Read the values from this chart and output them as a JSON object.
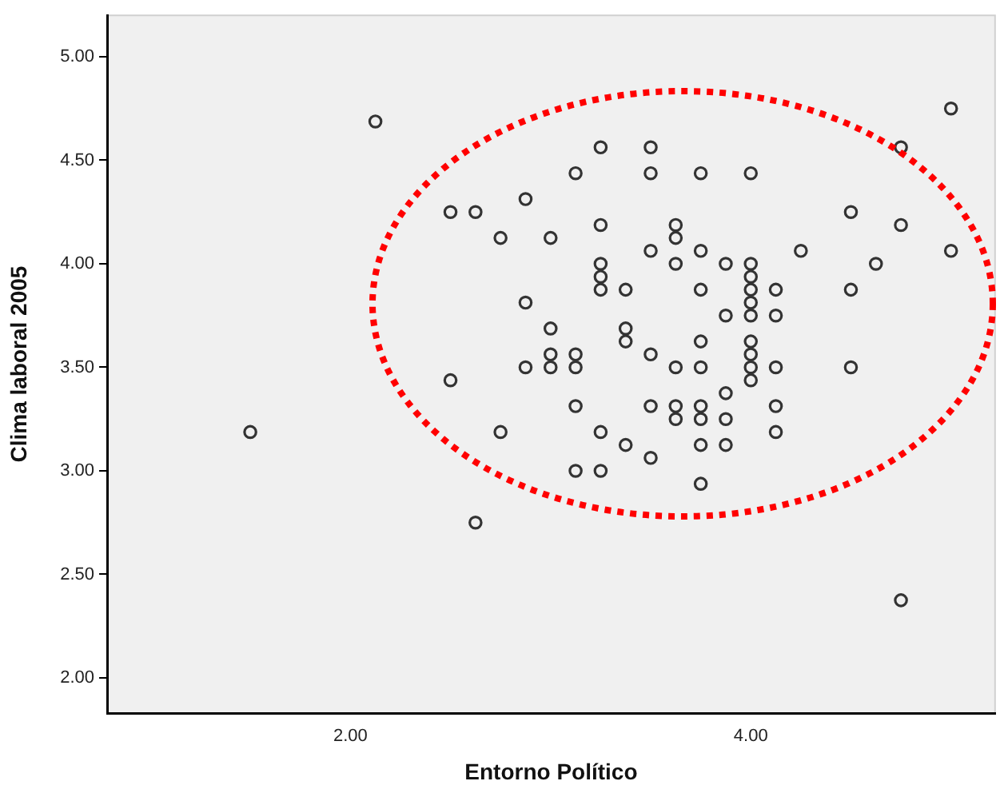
{
  "chart_data": {
    "type": "scatter",
    "xlabel": "Entorno Político",
    "ylabel": "Clima laboral 2005",
    "xlim": [
      0.785,
      5.22
    ],
    "ylim": [
      1.83,
      5.2
    ],
    "xticks": [
      {
        "value": 2,
        "label": "2.00"
      },
      {
        "value": 4,
        "label": "4.00"
      }
    ],
    "yticks": [
      {
        "value": 2,
        "label": "2.00"
      },
      {
        "value": 2.5,
        "label": "2.50"
      },
      {
        "value": 3,
        "label": "3.00"
      },
      {
        "value": 3.5,
        "label": "3.50"
      },
      {
        "value": 4,
        "label": "4.00"
      },
      {
        "value": 4.5,
        "label": "4.50"
      },
      {
        "value": 5,
        "label": "5.00"
      }
    ],
    "grid": false,
    "legend": false,
    "marker": "circle",
    "series": [
      {
        "color": "#333333",
        "x": [
          2.125,
          2.5,
          2.625,
          2.875,
          2.75,
          3.0,
          2.875,
          3.0,
          3.0,
          2.875,
          3.0,
          2.5,
          1.5,
          2.75,
          2.625,
          5.0,
          3.25,
          3.5,
          4.75,
          3.125,
          3.5,
          3.75,
          4.0,
          4.5,
          3.25,
          3.625,
          4.75,
          3.625,
          3.5,
          3.75,
          4.25,
          5.0,
          3.25,
          3.625,
          3.875,
          4.0,
          4.625,
          3.25,
          4.0,
          3.25,
          3.375,
          3.75,
          4.0,
          4.125,
          4.5,
          4.0,
          3.875,
          4.0,
          4.125,
          3.375,
          3.375,
          3.75,
          4.0,
          3.125,
          3.5,
          4.0,
          3.125,
          3.625,
          3.75,
          4.0,
          4.125,
          4.5,
          4.0,
          3.875,
          3.125,
          3.5,
          3.625,
          3.75,
          4.125,
          3.625,
          3.75,
          3.875,
          3.25,
          4.125,
          3.375,
          3.75,
          3.875,
          3.5,
          3.125,
          3.25,
          3.75,
          4.75
        ],
        "values": [
          4.6875,
          4.25,
          4.25,
          4.3125,
          4.125,
          4.125,
          3.8125,
          3.6875,
          3.5625,
          3.5,
          3.5,
          3.4375,
          3.1875,
          3.1875,
          2.75,
          4.75,
          4.5625,
          4.5625,
          4.5625,
          4.4375,
          4.4375,
          4.4375,
          4.4375,
          4.25,
          4.1875,
          4.1875,
          4.1875,
          4.125,
          4.0625,
          4.0625,
          4.0625,
          4.0625,
          4.0,
          4.0,
          4.0,
          4.0,
          4.0,
          3.9375,
          3.9375,
          3.875,
          3.875,
          3.875,
          3.875,
          3.875,
          3.875,
          3.8125,
          3.75,
          3.75,
          3.75,
          3.6875,
          3.625,
          3.625,
          3.625,
          3.5625,
          3.5625,
          3.5625,
          3.5,
          3.5,
          3.5,
          3.5,
          3.5,
          3.5,
          3.4375,
          3.375,
          3.3125,
          3.3125,
          3.3125,
          3.3125,
          3.3125,
          3.25,
          3.25,
          3.25,
          3.1875,
          3.1875,
          3.125,
          3.125,
          3.125,
          3.0625,
          3.0,
          3.0,
          2.9375,
          2.375
        ]
      }
    ]
  }
}
